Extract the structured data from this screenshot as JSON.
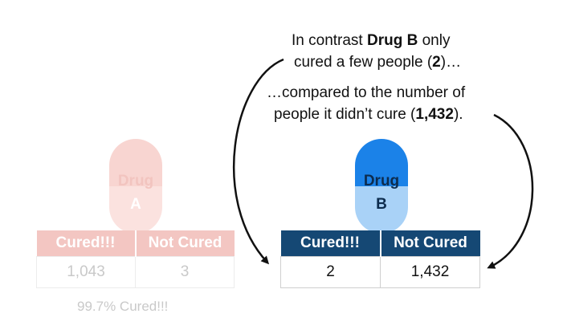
{
  "annotations": {
    "line1_prefix": "In contrast ",
    "line1_bold": "Drug B",
    "line1_suffix": " only",
    "line2_prefix": "cured a few people (",
    "line2_bold": "2",
    "line2_suffix": ")…",
    "line3": "…compared to the number of",
    "line4_prefix": "people it didn’t cure (",
    "line4_bold": "1,432",
    "line4_suffix": ")."
  },
  "drug_a": {
    "label_line1": "Drug",
    "label_line2": "A",
    "headers": [
      "Cured!!!",
      "Not Cured"
    ],
    "values": [
      "1,043",
      "3"
    ],
    "percent_text": "99.7% Cured!!!",
    "colors": {
      "pill_top": "#f8d5d1",
      "pill_bottom": "#fbe2df",
      "label": "#f2c4bf",
      "header_bg": "#f3c6c2"
    }
  },
  "drug_b": {
    "label_line1": "Drug",
    "label_line2": "B",
    "headers": [
      "Cured!!!",
      "Not Cured"
    ],
    "values": [
      "2",
      "1,432"
    ],
    "colors": {
      "pill_top": "#1b82e8",
      "pill_bottom": "#a9d2f7",
      "header_bg": "#154874"
    }
  }
}
